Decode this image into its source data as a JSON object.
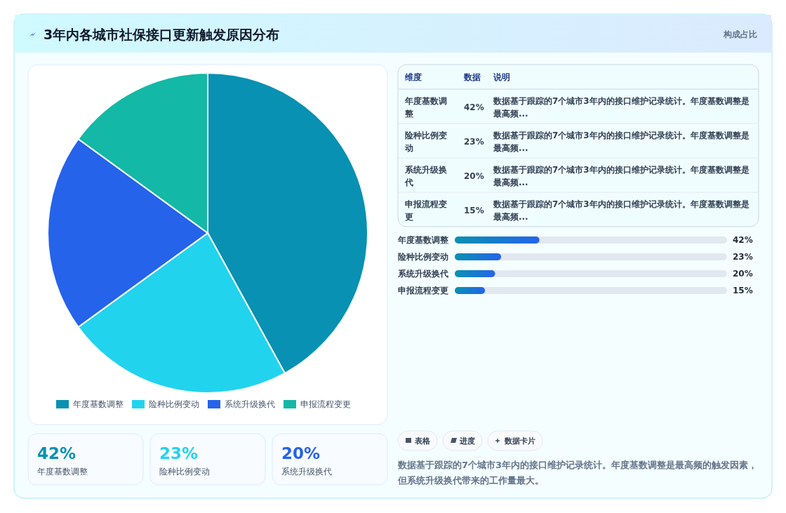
{
  "chart_data": [
    {
      "type": "other",
      "title": "3年内各城市社保接口更新触发原因分布",
      "subtitle": "构成占比"
    },
    {
      "type": "pie",
      "categories": [
        "年度基数调整",
        "险种比例变动",
        "系统升级换代",
        "申报流程变更"
      ],
      "values": [
        42,
        23,
        20,
        15
      ],
      "colors": [
        "#0891b2",
        "#22d3ee",
        "#2563eb",
        "#14b8a6"
      ],
      "legend": "bottom"
    },
    {
      "type": "other",
      "annotations": [
        "维度",
        "数据",
        "说明",
        "年度基数调整",
        "42%",
        "数据基于跟踪的7个城市3年内的接口维护记录统计。年度基数调整是最高频...",
        "险种比例变动",
        "23%",
        "数据基于跟踪的7个城市3年内的接口维护记录统计。年度基数调整是最高频...",
        "系统升级换代",
        "20%",
        "数据基于跟踪的7个城市3年内的接口维护记录统计。年度基数调整是最高频...",
        "申报流程变更",
        "15%",
        "数据基于跟踪的7个城市3年内的接口维护记录统计。年度基数调整是最高频..."
      ]
    },
    {
      "type": "bar",
      "orientation": "horizontal",
      "categories": [
        "年度基数调整",
        "险种比例变动",
        "系统升级换代",
        "申报流程变更"
      ],
      "values": [
        42,
        23,
        20,
        15
      ],
      "color": "#2563eb",
      "value_labels": [
        "42%",
        "23%",
        "20%",
        "15%"
      ],
      "xlim": [
        0,
        135
      ],
      "tick_labels": false
    },
    {
      "type": "other",
      "annotations": [
        "42%",
        "年度基数调整",
        "23%",
        "险种比例变动",
        "20%",
        "系统升级换代"
      ],
      "colors": [
        "#0891b2",
        "#22d3ee",
        "#2563eb"
      ]
    },
    {
      "type": "other",
      "annotations": [
        "表格",
        "进度",
        "数据卡片",
        "数据基于跟踪的7个城市3年内的接口维护记录统计。年度基数调整是最高频的触发因素，但系统升级换代带来的工作量最大。"
      ]
    }
  ]
}
